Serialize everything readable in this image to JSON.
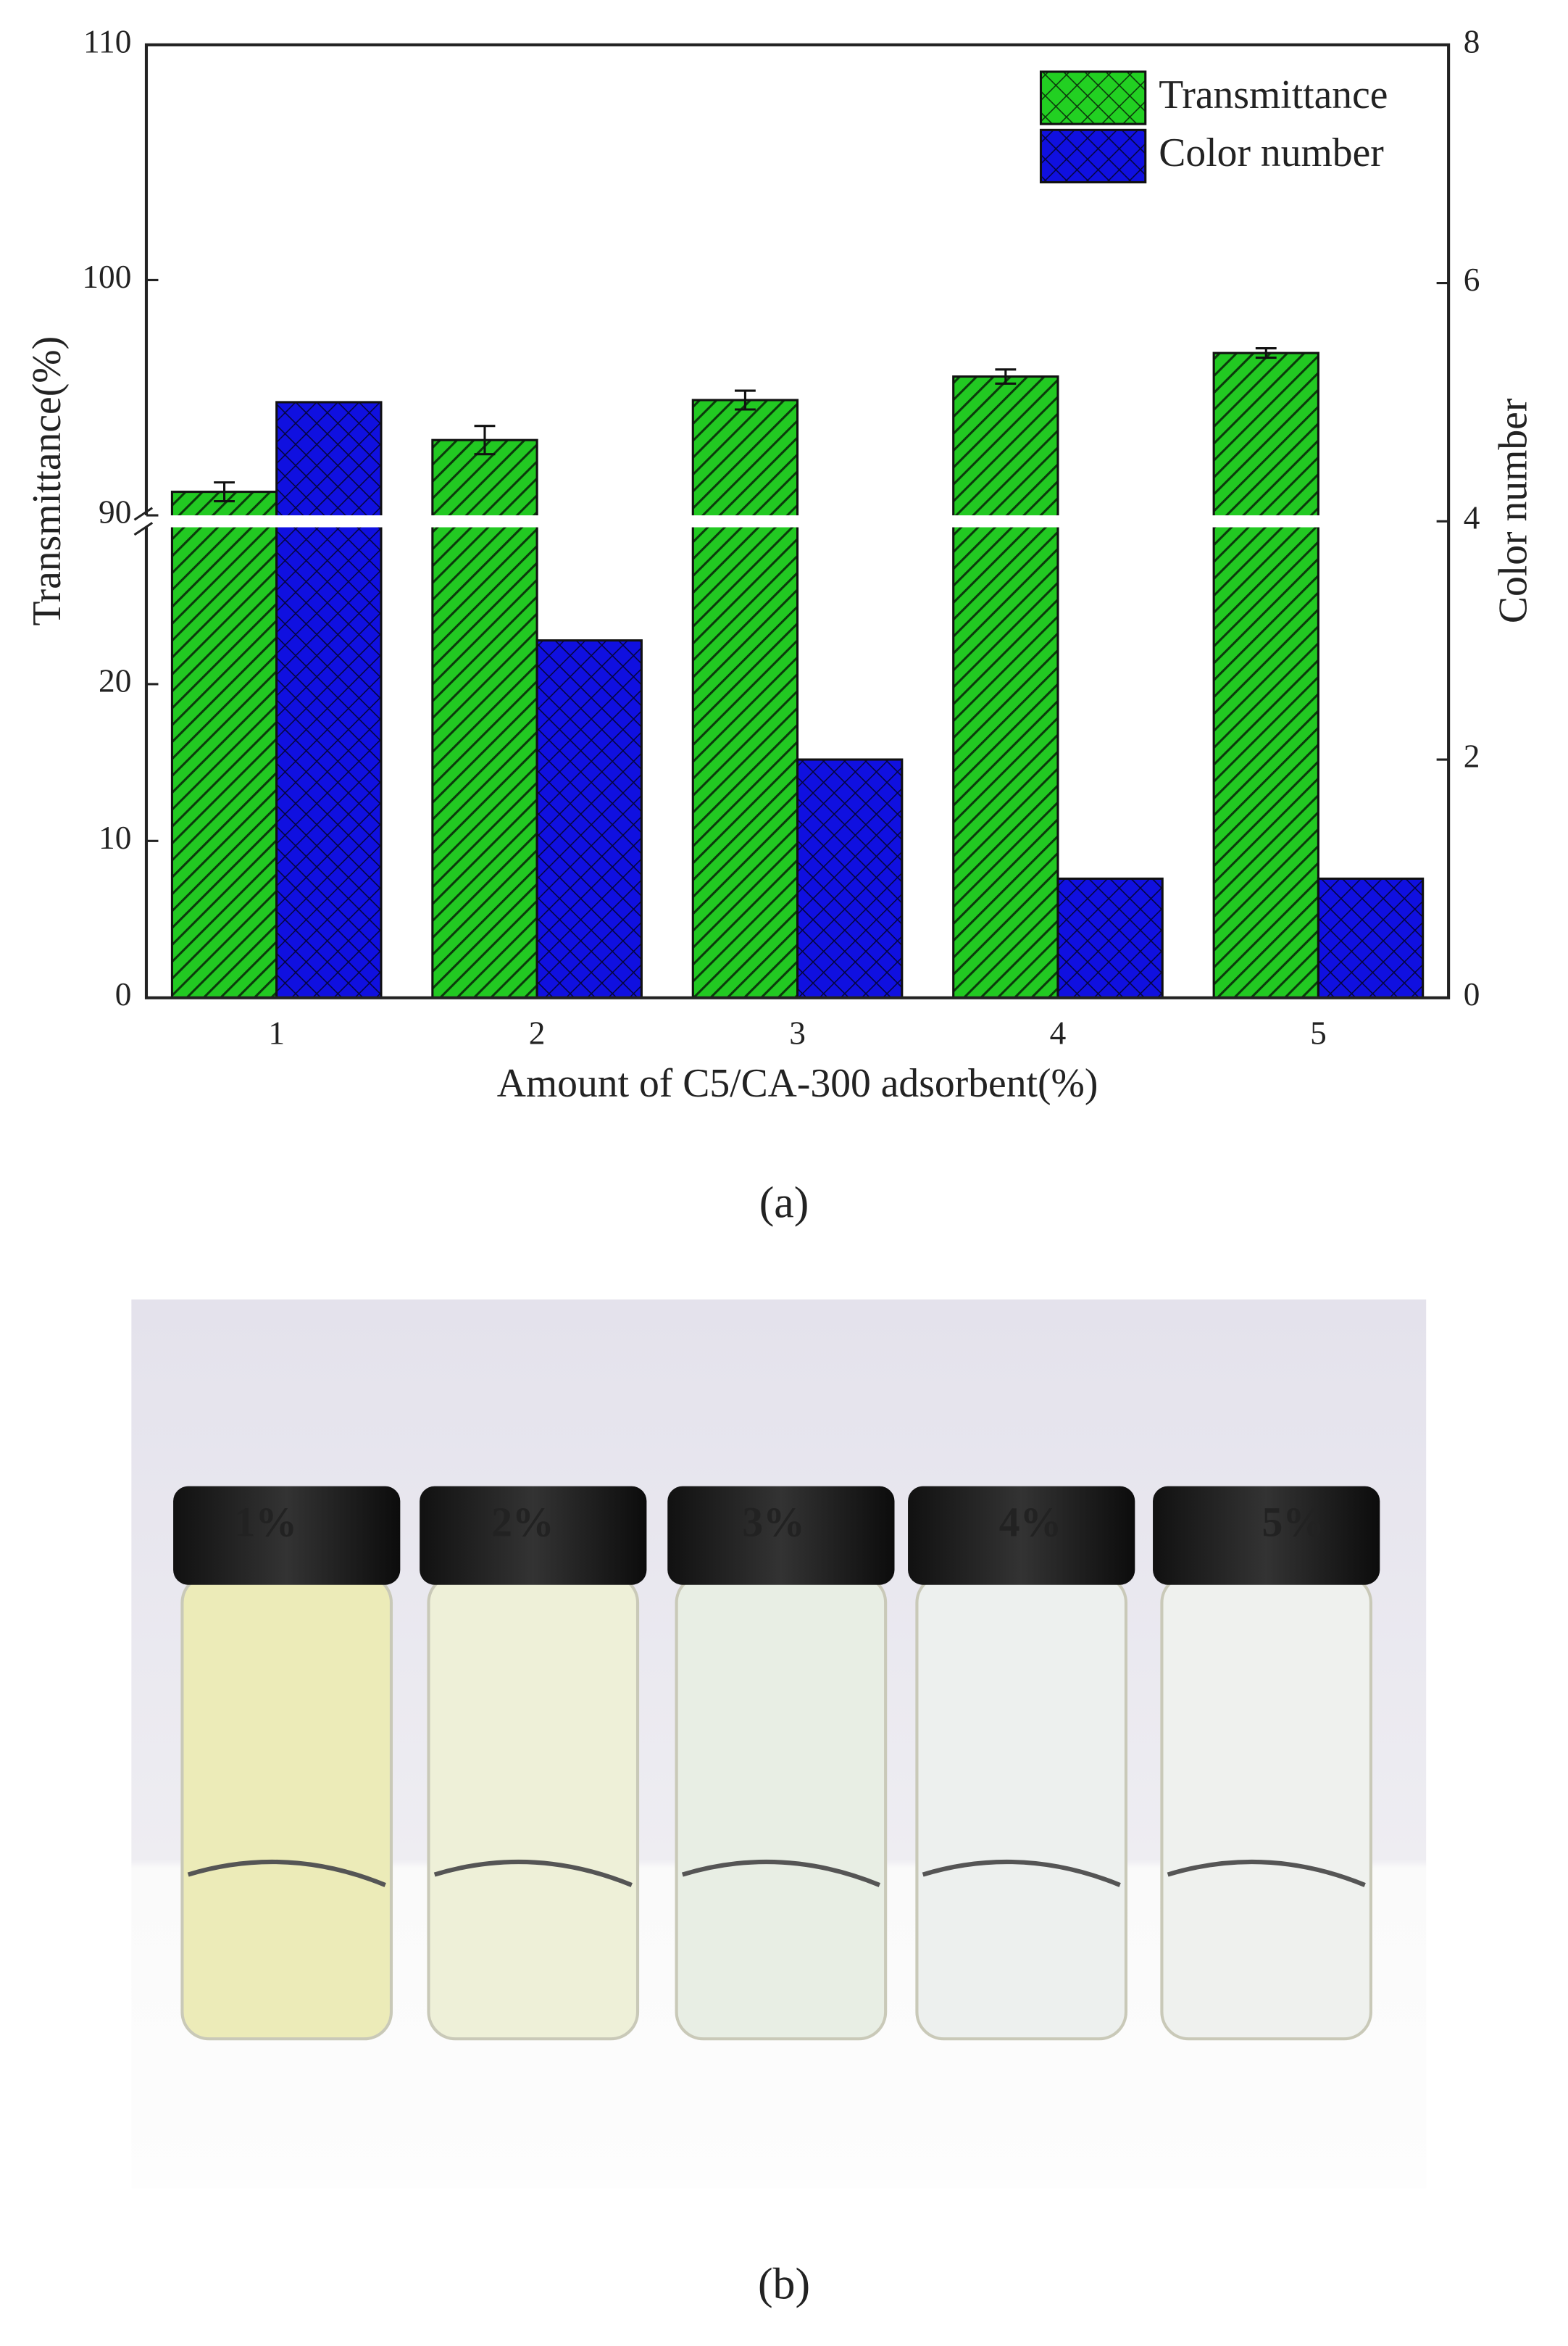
{
  "chart_data": {
    "type": "bar",
    "xlabel": "Amount of C5/CA-300 adsorbent(%)",
    "ylabel": "Transmittance(%)",
    "y2label": "Color number",
    "categories": [
      "1",
      "2",
      "3",
      "4",
      "5"
    ],
    "series": [
      {
        "name": "Transmittance",
        "color": "#1fd11f",
        "values": [
          91,
          93.2,
          94.9,
          95.9,
          96.9
        ],
        "errors": [
          0.4,
          0.6,
          0.4,
          0.3,
          0.2
        ]
      },
      {
        "name": "Color number",
        "color": "#0a0adf",
        "axis": "y2",
        "values": [
          5,
          3,
          2,
          1,
          1
        ]
      }
    ],
    "ylim": [
      0,
      110
    ],
    "ybreak": [
      30,
      90
    ],
    "yticks": [
      0,
      10,
      20,
      90,
      100,
      110
    ],
    "y2lim": [
      0,
      8
    ],
    "y2ticks": [
      0,
      2,
      4,
      6,
      8
    ],
    "legend": "upper right"
  },
  "panel_a_label": "(a)",
  "photo": {
    "vial_labels": [
      "1%",
      "2%",
      "3%",
      "4%",
      "5%"
    ]
  },
  "panel_b_label": "(b)"
}
